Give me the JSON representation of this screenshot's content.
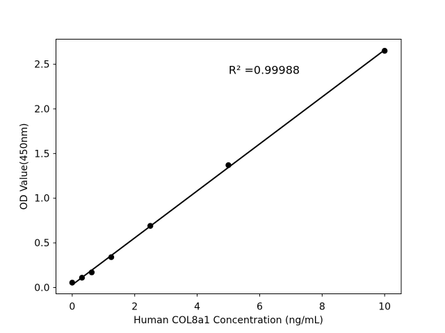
{
  "chart_data": {
    "type": "scatter",
    "title": "",
    "xlabel": "Human COL8a1 Concentration (ng/mL)",
    "ylabel": "OD Value(450nm)",
    "annotation": {
      "text": "R² =0.99988"
    },
    "points": {
      "x": [
        0,
        0.3125,
        0.625,
        1.25,
        2.5,
        5,
        10
      ],
      "y": [
        0.055,
        0.11,
        0.17,
        0.34,
        0.69,
        1.37,
        2.65
      ]
    },
    "fit_line": {
      "x": [
        0,
        10
      ],
      "y": [
        0.03,
        2.66
      ]
    },
    "xticks": {
      "values": [
        0,
        2,
        4,
        6,
        8,
        10
      ],
      "labels": [
        "0",
        "2",
        "4",
        "6",
        "8",
        "10"
      ]
    },
    "yticks": {
      "values": [
        0,
        0.5,
        1.0,
        1.5,
        2.0,
        2.5
      ],
      "labels": [
        "0.0",
        "0.5",
        "1.0",
        "1.5",
        "2.0",
        "2.5"
      ]
    },
    "xlim": [
      -0.52,
      10.53
    ],
    "ylim": [
      -0.07,
      2.78
    ],
    "grid": false,
    "legend": null,
    "colors": {
      "marker": "#000000",
      "line": "#000000",
      "axis": "#000000",
      "text": "#000000",
      "background": "#ffffff"
    }
  }
}
